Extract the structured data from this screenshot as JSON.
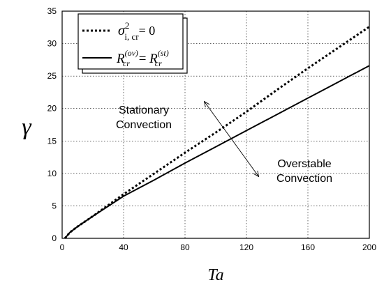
{
  "chart_data": {
    "type": "line",
    "xlabel": "Ta",
    "ylabel": "γ",
    "xlim": [
      0,
      200
    ],
    "ylim": [
      0,
      35
    ],
    "xticks": [
      0,
      40,
      80,
      120,
      160,
      200
    ],
    "yticks": [
      0,
      5,
      10,
      15,
      20,
      25,
      30,
      35
    ],
    "grid": true,
    "legend_position": "top-left",
    "series": [
      {
        "name": "σ²i, cr = 0",
        "legend": {
          "symbol": "σ",
          "sup": "2",
          "sub": "i, cr",
          "tail": "= 0"
        },
        "style": "dotted",
        "x": [
          1.8,
          5,
          10,
          20,
          40,
          60,
          80,
          100,
          120,
          140,
          160,
          180,
          200
        ],
        "y": [
          0,
          0.9,
          1.8,
          3.4,
          6.8,
          10.0,
          13.2,
          16.3,
          19.5,
          22.9,
          26.2,
          29.4,
          32.6
        ]
      },
      {
        "name": "Rcr(ov) = Rcr(st)",
        "legend": {
          "lhs": "R",
          "lhs_sub": "cr",
          "lhs_sup": "(ov)",
          "eq": " = ",
          "rhs": "R",
          "rhs_sub": "cr",
          "rhs_sup": "(st)"
        },
        "style": "solid",
        "x": [
          1.8,
          5,
          10,
          20,
          40,
          60,
          80,
          100,
          120,
          140,
          160,
          180,
          200
        ],
        "y": [
          0,
          0.9,
          1.8,
          3.4,
          6.5,
          9.0,
          11.6,
          14.1,
          16.6,
          19.1,
          21.6,
          24.1,
          26.6
        ]
      }
    ],
    "annotations": [
      {
        "lines": [
          "Stationary",
          "Convection"
        ]
      },
      {
        "lines": [
          "Overstable",
          "Convection"
        ]
      }
    ],
    "arrow": {
      "from": [
        92.5,
        21.1
      ],
      "to": [
        128,
        9.5
      ]
    }
  }
}
